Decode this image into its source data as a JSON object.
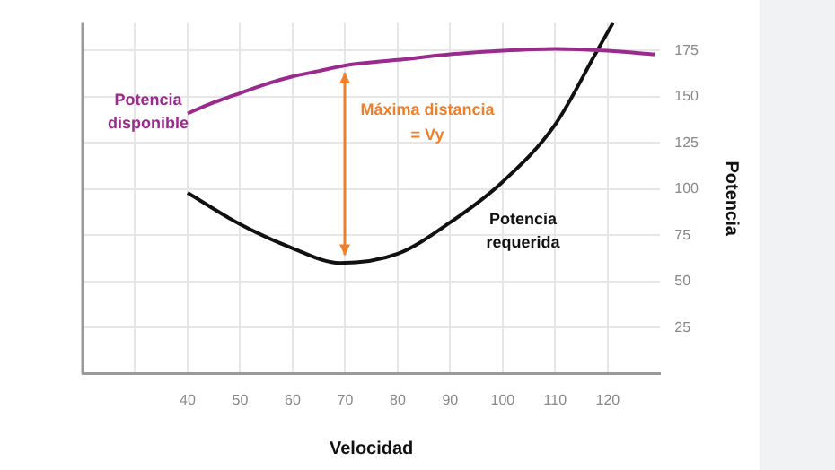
{
  "chart_data": {
    "type": "line",
    "xlabel": "Velocidad",
    "ylabel": "Potencia",
    "xlim": [
      20,
      130
    ],
    "ylim": [
      0,
      190
    ],
    "xticks": [
      {
        "value": 30,
        "label": null
      },
      40,
      50,
      60,
      70,
      80,
      90,
      100,
      110,
      120
    ],
    "yticks": [
      25,
      50,
      75,
      100,
      125,
      150,
      175
    ],
    "grid": true,
    "legend": false,
    "marker": "none",
    "line_style": "solid",
    "series": [
      {
        "name": "Potencia disponible",
        "color": "#9b2a8f",
        "x": [
          40,
          45,
          50,
          55,
          60,
          65,
          70,
          80,
          90,
          100,
          110,
          120,
          129
        ],
        "values": [
          141,
          147,
          152,
          157,
          161,
          164,
          167,
          170,
          173,
          175,
          176,
          175,
          173
        ]
      },
      {
        "name": "Potencia requerida",
        "color": "#111111",
        "x": [
          40,
          50,
          60,
          69,
          80,
          90,
          100,
          110,
          118,
          121
        ],
        "values": [
          98,
          81,
          68,
          60,
          65,
          82,
          104,
          135,
          175,
          190
        ]
      }
    ],
    "annotations": [
      "Máxima distancia\n= Vy"
    ]
  }
}
